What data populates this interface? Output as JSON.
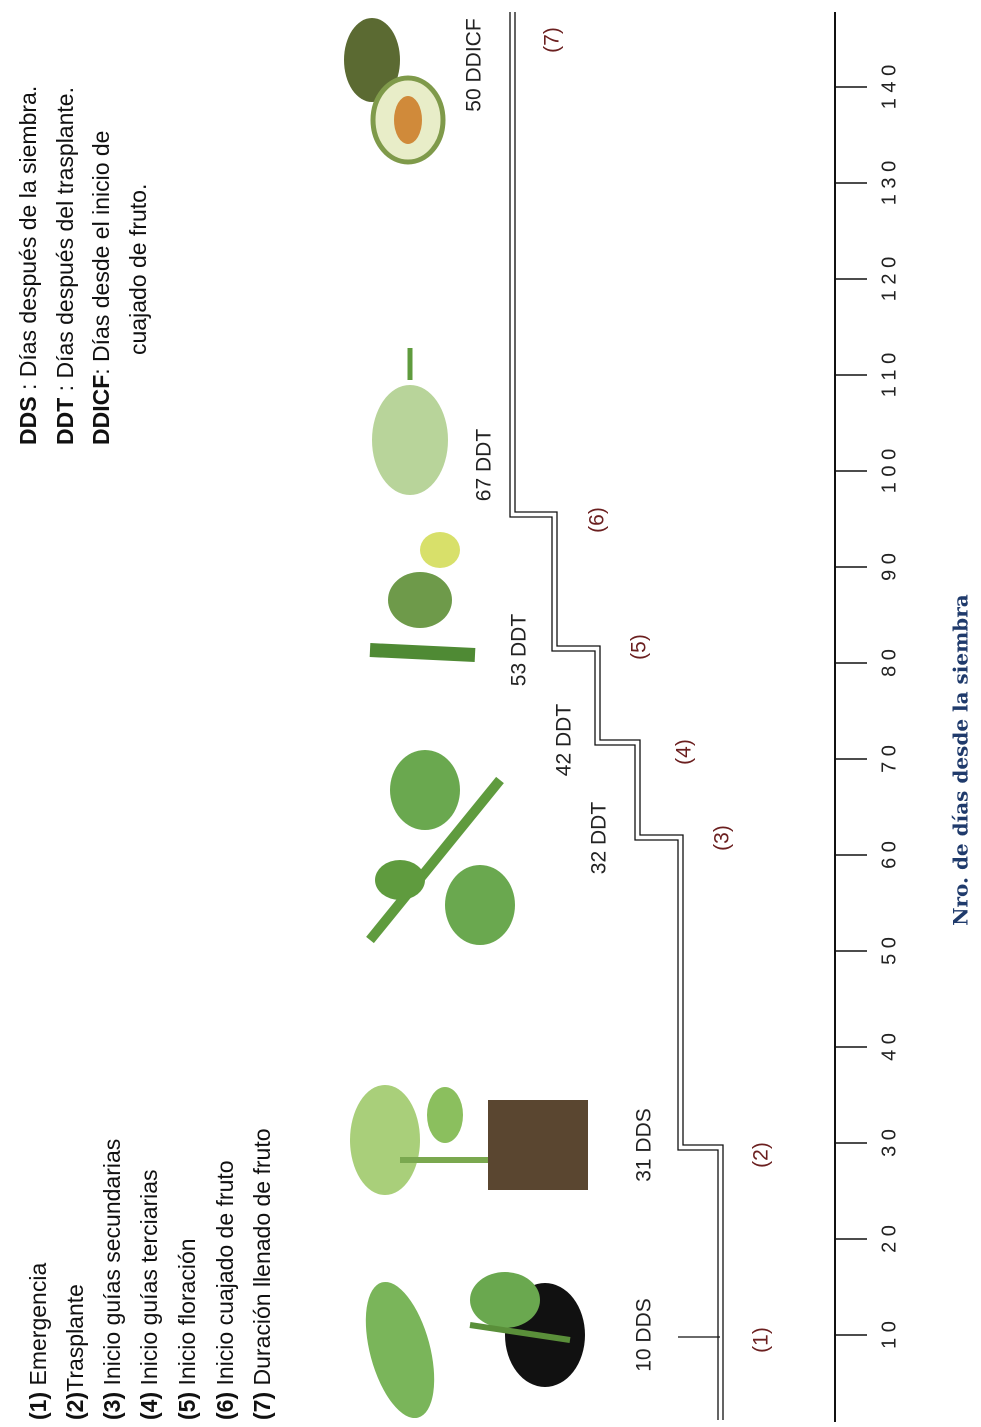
{
  "legend": [
    {
      "num": "(1)",
      "text": " Emergencia"
    },
    {
      "num": "(2)",
      "text": "Trasplante"
    },
    {
      "num": "(3)",
      "text": " Inicio guías  secundarias"
    },
    {
      "num": "(4)",
      "text": " Inicio guías terciarias"
    },
    {
      "num": "(5)",
      "text": " Inicio floración"
    },
    {
      "num": "(6)",
      "text": " Inicio cuajado de fruto"
    },
    {
      "num": "(7)",
      "text": " Duración llenado de fruto"
    }
  ],
  "abbreviations": [
    {
      "abbr": "DDS",
      "text": "   : Días después de la siembra."
    },
    {
      "abbr": "DDT",
      "text": "   : Días después del trasplante."
    },
    {
      "abbr": "DDICF",
      "text": ": Días desde el inicio de"
    }
  ],
  "abbreviation_continuation": "cuajado de fruto.",
  "stages": [
    "(1)",
    "(2)",
    "(3)",
    "(4)",
    "(5)",
    "(6)",
    "(7)"
  ],
  "durations": [
    "10 DDS",
    "31 DDS",
    "32 DDT",
    "42 DDT",
    "53 DDT",
    "67 DDT",
    "50 DDICF"
  ],
  "axis": {
    "title": "Nro. de días desde la siembra",
    "ticks": [
      {
        "value": 10,
        "label": "1 0"
      },
      {
        "value": 20,
        "label": "2 0"
      },
      {
        "value": 30,
        "label": "3 0"
      },
      {
        "value": 40,
        "label": "4 0"
      },
      {
        "value": 50,
        "label": "5 0"
      },
      {
        "value": 60,
        "label": "6 0"
      },
      {
        "value": 70,
        "label": "7 0"
      },
      {
        "value": 80,
        "label": "8 0"
      },
      {
        "value": 90,
        "label": "9 0"
      },
      {
        "value": 100,
        "label": "1 0 0"
      },
      {
        "value": 110,
        "label": "1 1 0"
      },
      {
        "value": 120,
        "label": "1 2 0"
      },
      {
        "value": 130,
        "label": "1 3 0"
      },
      {
        "value": 140,
        "label": "1 4 0"
      }
    ]
  }
}
